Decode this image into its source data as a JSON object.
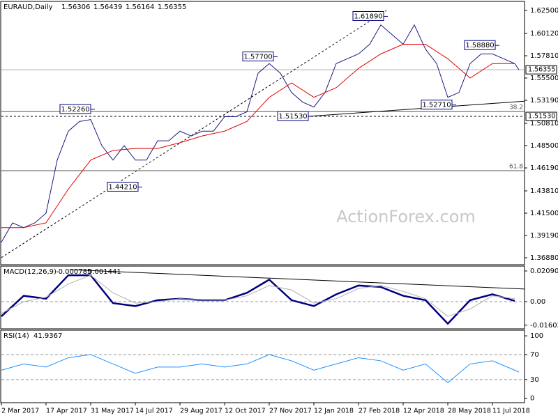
{
  "chart_data": [
    {
      "type": "line",
      "title": "EURAUD,Daily",
      "ohlc": [
        1.56306,
        1.56439,
        1.56164,
        1.56355
      ],
      "watermark": "ActionForex.com",
      "xlim": [
        0,
        375
      ],
      "ylim": [
        1.3616,
        1.6344
      ],
      "yticks": [
        {
          "value": 1.625,
          "label": "1.62500"
        },
        {
          "value": 1.6012,
          "label": "1.60120"
        },
        {
          "value": 1.5781,
          "label": "1.57810"
        },
        {
          "value": 1.555,
          "label": "1.55500"
        },
        {
          "value": 1.5319,
          "label": "1.53190"
        },
        {
          "value": 1.5081,
          "label": "1.50810"
        },
        {
          "value": 1.485,
          "label": "1.48500"
        },
        {
          "value": 1.4619,
          "label": "1.46190"
        },
        {
          "value": 1.4381,
          "label": "1.43810"
        },
        {
          "value": 1.415,
          "label": "1.41500"
        },
        {
          "value": 1.3919,
          "label": "1.39190"
        },
        {
          "value": 1.3688,
          "label": "1.36880"
        }
      ],
      "series": [
        {
          "color": "#1a1a80",
          "x": [
            0,
            8,
            16,
            24,
            32,
            40,
            48,
            56,
            64,
            72,
            80,
            88,
            96,
            104,
            112,
            120,
            128,
            136,
            144,
            152,
            160,
            168,
            176,
            184,
            192,
            200,
            208,
            216,
            224,
            232,
            240,
            248,
            256,
            264,
            272,
            280,
            288,
            296,
            304,
            312,
            320,
            328,
            336,
            344,
            352,
            360,
            368,
            371
          ],
          "values": [
            1.385,
            1.405,
            1.4,
            1.405,
            1.415,
            1.47,
            1.5,
            1.51,
            1.512,
            1.485,
            1.47,
            1.485,
            1.47,
            1.47,
            1.49,
            1.49,
            1.5,
            1.495,
            1.5,
            1.5,
            1.515,
            1.515,
            1.52,
            1.56,
            1.57,
            1.56,
            1.54,
            1.53,
            1.525,
            1.54,
            1.57,
            1.575,
            1.58,
            1.59,
            1.61,
            1.6,
            1.59,
            1.61,
            1.585,
            1.57,
            1.535,
            1.54,
            1.57,
            1.58,
            1.58,
            1.575,
            1.57,
            1.56355
          ]
        },
        {
          "color": "#e00000",
          "x": [
            0,
            16,
            32,
            48,
            64,
            80,
            96,
            112,
            128,
            144,
            160,
            176,
            192,
            208,
            224,
            240,
            256,
            272,
            288,
            304,
            320,
            336,
            352,
            368
          ],
          "values": [
            1.4,
            1.4,
            1.405,
            1.44,
            1.47,
            1.48,
            1.482,
            1.482,
            1.488,
            1.495,
            1.5,
            1.51,
            1.535,
            1.55,
            1.535,
            1.545,
            1.565,
            1.58,
            1.59,
            1.59,
            1.575,
            1.555,
            1.57,
            1.57
          ]
        }
      ],
      "price_levels": [
        {
          "value": 1.56355,
          "label": "1.56355",
          "dashed": false
        },
        {
          "value": 1.5153,
          "label": "1.51530",
          "dashed": true
        }
      ],
      "fib_levels": [
        {
          "value": 1.5203,
          "label": "38.2"
        },
        {
          "value": 1.459,
          "label": "61.8"
        }
      ],
      "trendlines": [
        {
          "x": [
            0,
            276
          ],
          "y": [
            1.369,
            1.625
          ],
          "dashed": true
        },
        {
          "x": [
            220,
            375
          ],
          "y": [
            1.5153,
            1.531
          ],
          "dashed": false
        }
      ],
      "annotations": [
        {
          "x": 275,
          "value": 1.6189,
          "label": "1.61890"
        },
        {
          "x": 196,
          "value": 1.577,
          "label": "1.57700"
        },
        {
          "x": 65,
          "value": 1.5226,
          "label": "1.52260"
        },
        {
          "x": 221,
          "value": 1.5153,
          "label": "1.51530"
        },
        {
          "x": 99,
          "value": 1.4421,
          "label": "1.44210"
        },
        {
          "x": 355,
          "value": 1.5888,
          "label": "1.58880"
        },
        {
          "x": 324,
          "value": 1.5271,
          "label": "1.52710"
        }
      ]
    },
    {
      "type": "line",
      "title": "MACD(12,26,9)",
      "readout": [
        -0.000785,
        0.001441
      ],
      "xlim": [
        0,
        375
      ],
      "ylim": [
        -0.0185,
        0.0242
      ],
      "yticks": [
        0.020904,
        {
          "value": 0,
          "label": "0.00"
        },
        -0.016023
      ],
      "series": [
        {
          "color": "#000080",
          "x": [
            0,
            16,
            32,
            48,
            64,
            80,
            96,
            112,
            128,
            144,
            160,
            176,
            192,
            208,
            224,
            240,
            256,
            272,
            288,
            304,
            320,
            336,
            352,
            368
          ],
          "values": [
            -0.01,
            0.004,
            0.002,
            0.018,
            0.018,
            -0.001,
            -0.003,
            0.001,
            0.002,
            0.001,
            0.001,
            0.006,
            0.015,
            0.001,
            -0.003,
            0.005,
            0.011,
            0.01,
            0.004,
            0.001,
            -0.015,
            0.001,
            0.005,
            0.0005
          ]
        },
        {
          "color": "#b0b0b0",
          "x": [
            0,
            16,
            32,
            48,
            64,
            80,
            96,
            112,
            128,
            144,
            160,
            176,
            192,
            208,
            224,
            240,
            256,
            272,
            288,
            304,
            320,
            336,
            352,
            368
          ],
          "values": [
            -0.008,
            0,
            0.003,
            0.012,
            0.018,
            0.006,
            -0.001,
            0,
            0.002,
            0.001,
            0.001,
            0.004,
            0.011,
            0.008,
            -0.001,
            0.002,
            0.009,
            0.011,
            0.007,
            0.002,
            -0.01,
            -0.005,
            0.004,
            0.002
          ]
        }
      ],
      "trendlines": [
        {
          "x": [
            49,
            375
          ],
          "y": [
            0.0218,
            0.0086
          ],
          "dashed": false
        }
      ]
    },
    {
      "type": "line",
      "title": "RSI(14)",
      "readout": [
        41.9367
      ],
      "xlim": [
        0,
        375
      ],
      "ylim": [
        -7,
        109
      ],
      "yticks": [
        100,
        70,
        30,
        0
      ],
      "xticks": [
        {
          "value": 0,
          "label": "2 Mar 2017"
        },
        {
          "value": 32,
          "label": "17 Apr 2017"
        },
        {
          "value": 64,
          "label": "31 May 2017"
        },
        {
          "value": 96,
          "label": "14 Jul 2017"
        },
        {
          "value": 128,
          "label": "29 Aug 2017"
        },
        {
          "value": 160,
          "label": "12 Oct 2017"
        },
        {
          "value": 192,
          "label": "27 Nov 2017"
        },
        {
          "value": 224,
          "label": "12 Jan 2018"
        },
        {
          "value": 256,
          "label": "27 Feb 2018"
        },
        {
          "value": 288,
          "label": "12 Apr 2018"
        },
        {
          "value": 320,
          "label": "28 May 2018"
        },
        {
          "value": 352,
          "label": "11 Jul 2018"
        }
      ],
      "series": [
        {
          "color": "#1e90ff",
          "x": [
            0,
            16,
            32,
            48,
            64,
            80,
            96,
            112,
            128,
            144,
            160,
            176,
            192,
            208,
            224,
            240,
            256,
            272,
            288,
            304,
            320,
            336,
            352,
            368,
            371
          ],
          "values": [
            45,
            55,
            50,
            65,
            70,
            55,
            40,
            50,
            50,
            55,
            50,
            55,
            70,
            60,
            45,
            55,
            65,
            60,
            45,
            55,
            25,
            55,
            60,
            45,
            41.9367
          ]
        }
      ]
    }
  ]
}
